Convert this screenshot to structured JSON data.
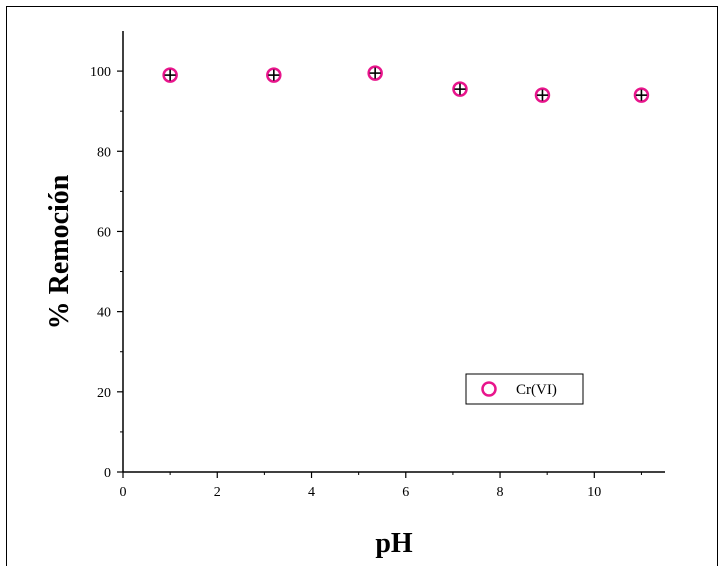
{
  "chart_data": {
    "type": "scatter",
    "title": "",
    "xlabel": "pH",
    "ylabel": "% Remoción",
    "xlim": [
      0,
      11.5
    ],
    "ylim": [
      0,
      110
    ],
    "x_ticks": [
      0,
      2,
      4,
      6,
      8,
      10
    ],
    "y_ticks": [
      0,
      20,
      40,
      60,
      80,
      100
    ],
    "grid": false,
    "legend": "inside-lower-right",
    "series": [
      {
        "name": "Cr(VI)",
        "color": "#e8158c",
        "marker": "open-circle-with-error-cross",
        "x": [
          1.0,
          3.2,
          5.35,
          7.15,
          8.9,
          11.0
        ],
        "y": [
          99.0,
          99.0,
          99.5,
          95.5,
          94.0,
          94.0
        ]
      }
    ]
  }
}
